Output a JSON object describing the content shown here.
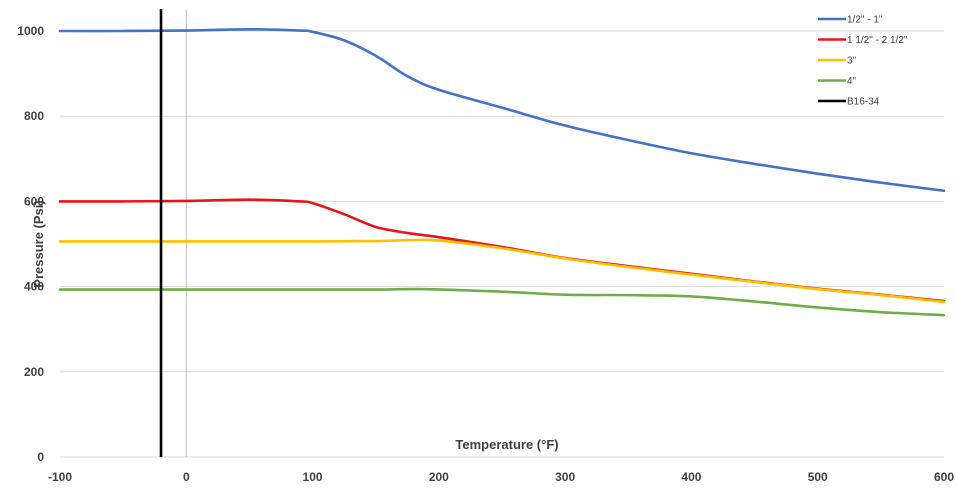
{
  "chart_data": {
    "type": "line",
    "title": "",
    "xlabel": "Temperature (°F)",
    "ylabel": "Pressure (Psi)",
    "xlim": [
      -100,
      600
    ],
    "ylim": [
      0,
      1000
    ],
    "x_ticks": [
      -100,
      0,
      100,
      200,
      300,
      400,
      500,
      600
    ],
    "y_ticks": [
      0,
      200,
      400,
      600,
      800,
      1000
    ],
    "grid": "horizontal",
    "legend_position": "top-right",
    "series": [
      {
        "name": "1/2\" - 1\"",
        "color": "#4472C4",
        "points": [
          [
            -100,
            1000
          ],
          [
            -50,
            1000
          ],
          [
            0,
            1001
          ],
          [
            50,
            1004
          ],
          [
            90,
            1001
          ],
          [
            100,
            998
          ],
          [
            125,
            978
          ],
          [
            150,
            942
          ],
          [
            175,
            894
          ],
          [
            200,
            862
          ],
          [
            250,
            820
          ],
          [
            300,
            778
          ],
          [
            350,
            744
          ],
          [
            400,
            713
          ],
          [
            450,
            688
          ],
          [
            500,
            665
          ],
          [
            550,
            644
          ],
          [
            600,
            625
          ]
        ]
      },
      {
        "name": "1 1/2\" - 2 1/2\"",
        "color": "#E8141C",
        "points": [
          [
            -100,
            600
          ],
          [
            -50,
            600
          ],
          [
            0,
            601
          ],
          [
            50,
            604
          ],
          [
            90,
            600
          ],
          [
            100,
            596
          ],
          [
            125,
            570
          ],
          [
            150,
            540
          ],
          [
            175,
            526
          ],
          [
            200,
            516
          ],
          [
            250,
            493
          ],
          [
            300,
            467
          ],
          [
            350,
            448
          ],
          [
            400,
            430
          ],
          [
            450,
            412
          ],
          [
            500,
            395
          ],
          [
            550,
            381
          ],
          [
            600,
            366
          ]
        ]
      },
      {
        "name": "3\"",
        "color": "#FFC000",
        "points": [
          [
            -100,
            506
          ],
          [
            0,
            506
          ],
          [
            100,
            506
          ],
          [
            150,
            507
          ],
          [
            175,
            509
          ],
          [
            200,
            508
          ],
          [
            250,
            490
          ],
          [
            300,
            466
          ],
          [
            350,
            446
          ],
          [
            400,
            428
          ],
          [
            450,
            411
          ],
          [
            500,
            394
          ],
          [
            550,
            380
          ],
          [
            600,
            364
          ]
        ]
      },
      {
        "name": "4\"",
        "color": "#70AD47",
        "points": [
          [
            -100,
            393
          ],
          [
            0,
            393
          ],
          [
            100,
            393
          ],
          [
            150,
            393
          ],
          [
            190,
            394
          ],
          [
            250,
            388
          ],
          [
            300,
            381
          ],
          [
            350,
            380
          ],
          [
            400,
            377
          ],
          [
            450,
            365
          ],
          [
            500,
            351
          ],
          [
            550,
            340
          ],
          [
            600,
            333
          ]
        ]
      },
      {
        "name": "B16-34",
        "color": "#000000",
        "points": [
          [
            -20,
            0
          ],
          [
            -20,
            1050
          ]
        ]
      }
    ]
  }
}
